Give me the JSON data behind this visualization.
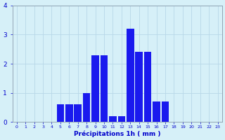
{
  "hours": [
    0,
    1,
    2,
    3,
    4,
    5,
    6,
    7,
    8,
    9,
    10,
    11,
    12,
    13,
    14,
    15,
    16,
    17,
    18,
    19,
    20,
    21,
    22,
    23
  ],
  "values": [
    0,
    0,
    0,
    0,
    0,
    0.6,
    0.6,
    0.6,
    1.0,
    2.3,
    2.3,
    0.2,
    0.2,
    3.2,
    2.4,
    2.4,
    0.7,
    0.7,
    0,
    0,
    0,
    0,
    0,
    0
  ],
  "bar_color": "#1a1aee",
  "background_color": "#d6f0f8",
  "grid_color": "#b8d8e8",
  "axis_color": "#8899aa",
  "text_color": "#0000cc",
  "xlabel": "Précipitations 1h ( mm )",
  "ylim": [
    0,
    4
  ],
  "yticks": [
    0,
    1,
    2,
    3,
    4
  ],
  "xlim": [
    -0.5,
    23.5
  ],
  "title": ""
}
